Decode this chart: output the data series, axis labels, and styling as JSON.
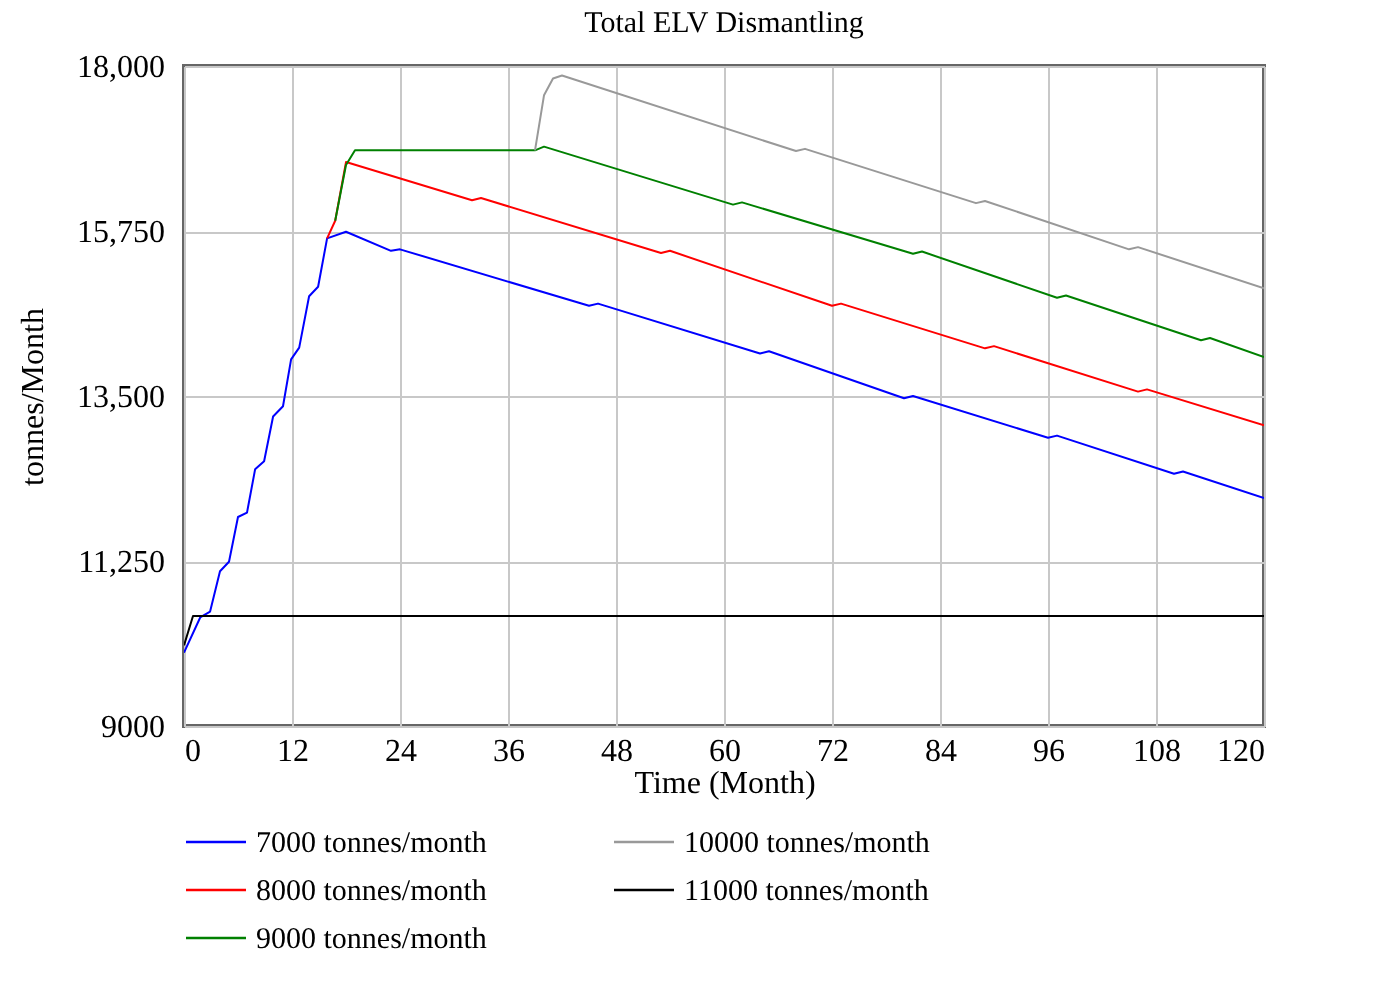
{
  "chart_data": {
    "type": "line",
    "title": "Total ELV Dismantling",
    "xlabel": "Time (Month)",
    "ylabel": "tonnes/Month",
    "xlim": [
      0,
      120
    ],
    "xticks": [
      0,
      12,
      24,
      36,
      48,
      60,
      72,
      84,
      96,
      108,
      120
    ],
    "ylim": [
      9000,
      18000
    ],
    "yticks": [
      9000,
      {
        "value": 11250,
        "label": "11,250"
      },
      {
        "value": 13500,
        "label": "13,500"
      },
      {
        "value": 15750,
        "label": "15,750"
      },
      {
        "value": 18000,
        "label": "18,000"
      }
    ],
    "grid": true,
    "legend": "bottom",
    "series": [
      {
        "name": "7000 tonnes/month",
        "color": "#0000ff",
        "x": [
          0,
          1.8,
          2.9,
          4,
          5,
          6,
          7,
          7.9,
          8.9,
          9.9,
          11,
          11.9,
          12.8,
          13.9,
          14.9,
          15.9,
          18,
          23,
          24,
          45,
          46,
          64,
          65,
          80,
          81,
          96,
          97,
          110,
          111,
          120
        ],
        "values": [
          10000,
          10480,
          10560,
          11110,
          11240,
          11850,
          11910,
          12500,
          12610,
          13220,
          13360,
          14000,
          14160,
          14860,
          14990,
          15650,
          15740,
          15480,
          15500,
          14730,
          14760,
          14080,
          14110,
          13470,
          13500,
          12930,
          12960,
          12440,
          12470,
          12110
        ]
      },
      {
        "name": "8000 tonnes/month",
        "color": "#ff0000",
        "x": [
          15.9,
          16.8,
          18,
          32,
          33,
          53,
          54,
          72,
          73,
          89,
          90,
          106,
          107,
          120
        ],
        "values": [
          15650,
          15890,
          16690,
          16170,
          16200,
          15450,
          15480,
          14730,
          14760,
          14150,
          14180,
          13560,
          13590,
          13100
        ]
      },
      {
        "name": "9000 tonnes/month",
        "color": "#008000",
        "x": [
          16.8,
          18,
          19,
          39,
          40,
          61,
          62,
          81,
          82,
          97,
          98,
          113,
          114,
          120
        ],
        "values": [
          15890,
          16650,
          16850,
          16850,
          16900,
          16110,
          16140,
          15440,
          15470,
          14840,
          14870,
          14260,
          14290,
          14030
        ]
      },
      {
        "name": "10000 tonnes/month",
        "color": "#999999",
        "x": [
          39,
          40,
          41,
          42,
          68,
          69,
          88,
          89,
          105,
          106,
          120
        ],
        "values": [
          16850,
          17600,
          17830,
          17870,
          16840,
          16870,
          16130,
          16160,
          15500,
          15530,
          14970
        ]
      },
      {
        "name": "11000 tonnes/month",
        "color": "#000000",
        "x": [
          0,
          1,
          120
        ],
        "values": [
          10100,
          10500,
          10500
        ]
      }
    ]
  }
}
